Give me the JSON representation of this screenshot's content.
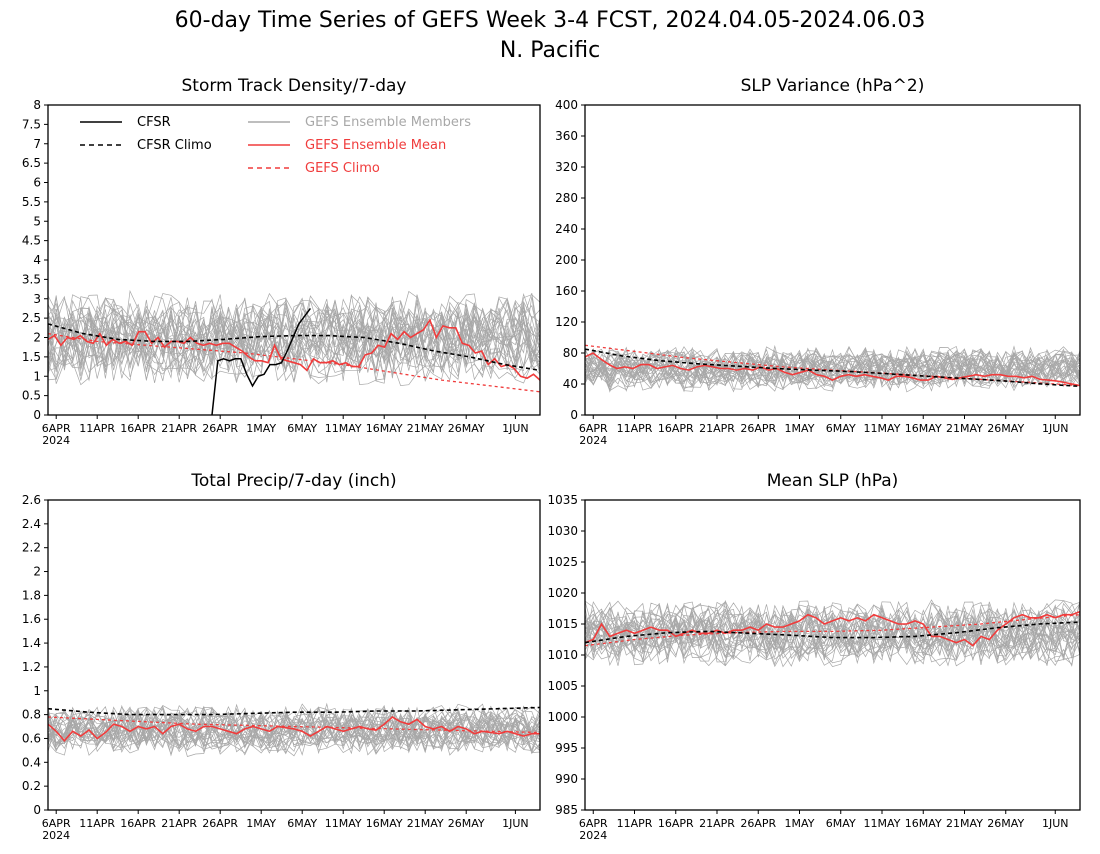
{
  "title": "60-day Time Series of GEFS Week 3-4 FCST, 2024.04.05-2024.06.03",
  "subtitle": "N. Pacific",
  "legend": {
    "cfsr": "CFSR",
    "cfsr_climo": "CFSR Climo",
    "members": "GEFS Ensemble Members",
    "mean": "GEFS Ensemble Mean",
    "gefs_climo": "GEFS Climo"
  },
  "colors": {
    "cfsr": "#000000",
    "cfsr_climo": "#000000",
    "members": "#a8a8a8",
    "mean": "#f03c3c",
    "gefs_climo": "#f03c3c"
  },
  "x_ticks": [
    "6APR",
    "11APR",
    "16APR",
    "21APR",
    "26APR",
    "1MAY",
    "6MAY",
    "11MAY",
    "16MAY",
    "21MAY",
    "26MAY",
    "1JUN"
  ],
  "x_year": "2024",
  "chart_data": [
    {
      "type": "line",
      "title": "Storm Track Density/7-day",
      "ylim": [
        0,
        8
      ],
      "yticks": [
        "0",
        "0.5",
        "1",
        "1.5",
        "2",
        "2.5",
        "3",
        "3.5",
        "4",
        "4.5",
        "5",
        "5.5",
        "6",
        "6.5",
        "7",
        "7.5",
        "8"
      ],
      "member_center": 2.0,
      "member_spread": 0.9,
      "member_count": 30,
      "series": [
        {
          "name": "GEFS Ensemble Mean",
          "role": "mean",
          "values": [
            1.95,
            2.05,
            1.8,
            2.0,
            1.95,
            2.05,
            1.9,
            1.85,
            2.1,
            1.8,
            1.95,
            1.85,
            1.9,
            1.8,
            2.15,
            2.15,
            1.85,
            2.0,
            1.75,
            1.9,
            1.9,
            1.85,
            2.0,
            1.85,
            1.8,
            1.85,
            1.8,
            1.85,
            1.85,
            1.75,
            1.65,
            1.5,
            1.4,
            1.4,
            1.35,
            1.8,
            1.45,
            1.4,
            1.35,
            1.3,
            1.15,
            1.45,
            1.35,
            1.35,
            1.4,
            1.3,
            1.35,
            1.25,
            1.25,
            1.55,
            1.6,
            1.8,
            1.75,
            2.1,
            1.95,
            2.15,
            2.0,
            2.1,
            2.2,
            2.45,
            2.0,
            2.3,
            2.25,
            2.25,
            1.85,
            1.8,
            1.6,
            1.65,
            1.3,
            1.45,
            1.25,
            1.3,
            1.2,
            1.0,
            0.95,
            1.05,
            0.9
          ]
        },
        {
          "name": "GEFS Climo",
          "role": "gefs_climo",
          "values": [
            2.1,
            1.9,
            1.8,
            1.7,
            1.6,
            1.45,
            1.3,
            1.1,
            0.9,
            0.75,
            0.6
          ]
        },
        {
          "name": "CFSR Climo",
          "role": "cfsr_climo",
          "values": [
            2.35,
            2.1,
            1.95,
            1.9,
            1.9,
            1.95,
            2.02,
            2.05,
            2.05,
            2.0,
            1.85,
            1.65,
            1.5,
            1.3,
            1.15
          ]
        },
        {
          "name": "CFSR",
          "role": "cfsr",
          "start_index": 20,
          "values": [
            0.0,
            1.4,
            1.45,
            1.4,
            1.45,
            1.45,
            1.05,
            0.75,
            1.0,
            1.05,
            1.3,
            1.3,
            1.35,
            1.65,
            2.0,
            2.35,
            2.55,
            2.75
          ]
        }
      ]
    },
    {
      "type": "line",
      "title": "SLP Variance (hPa^2)",
      "ylim": [
        0,
        400
      ],
      "yticks": [
        "0",
        "40",
        "80",
        "120",
        "160",
        "200",
        "240",
        "280",
        "320",
        "360",
        "400"
      ],
      "member_center": 60,
      "member_spread": 22,
      "member_count": 30,
      "series": [
        {
          "name": "GEFS Ensemble Mean",
          "role": "mean",
          "values": [
            75,
            80,
            72,
            65,
            60,
            62,
            60,
            65,
            65,
            60,
            62,
            64,
            60,
            58,
            62,
            64,
            62,
            60,
            60,
            58,
            60,
            58,
            62,
            58,
            60,
            55,
            52,
            55,
            58,
            52,
            50,
            45,
            50,
            52,
            50,
            52,
            50,
            48,
            45,
            50,
            50,
            48,
            45,
            45,
            50,
            48,
            46,
            48,
            50,
            52,
            50,
            52,
            52,
            50,
            50,
            48,
            50,
            46,
            45,
            44,
            42,
            40,
            38
          ]
        },
        {
          "name": "GEFS Climo",
          "role": "gefs_climo",
          "values": [
            90,
            82,
            74,
            68,
            62,
            58,
            54,
            50,
            46,
            42,
            38
          ]
        },
        {
          "name": "CFSR Climo",
          "role": "cfsr_climo",
          "values": [
            85,
            76,
            70,
            66,
            63,
            60,
            58,
            56,
            53,
            50,
            47,
            44,
            40,
            37
          ]
        }
      ]
    },
    {
      "type": "line",
      "title": "Total Precip/7-day (inch)",
      "ylim": [
        0,
        2.6
      ],
      "yticks": [
        "0",
        "0.2",
        "0.4",
        "0.6",
        "0.8",
        "1",
        "1.2",
        "1.4",
        "1.6",
        "1.8",
        "2",
        "2.2",
        "2.4",
        "2.6"
      ],
      "member_center": 0.67,
      "member_spread": 0.16,
      "member_count": 30,
      "series": [
        {
          "name": "GEFS Ensemble Mean",
          "role": "mean",
          "values": [
            0.72,
            0.66,
            0.58,
            0.66,
            0.62,
            0.67,
            0.6,
            0.65,
            0.72,
            0.7,
            0.66,
            0.7,
            0.68,
            0.7,
            0.64,
            0.7,
            0.72,
            0.68,
            0.66,
            0.7,
            0.7,
            0.68,
            0.66,
            0.64,
            0.68,
            0.7,
            0.68,
            0.66,
            0.7,
            0.69,
            0.68,
            0.66,
            0.62,
            0.66,
            0.7,
            0.68,
            0.66,
            0.68,
            0.7,
            0.68,
            0.67,
            0.72,
            0.78,
            0.74,
            0.72,
            0.76,
            0.7,
            0.68,
            0.7,
            0.66,
            0.7,
            0.68,
            0.64,
            0.66,
            0.65,
            0.64,
            0.66,
            0.64,
            0.62,
            0.64,
            0.64
          ]
        },
        {
          "name": "GEFS Climo",
          "role": "gefs_climo",
          "values": [
            0.78,
            0.76,
            0.74,
            0.72,
            0.71,
            0.7,
            0.69,
            0.68,
            0.67,
            0.66,
            0.65
          ]
        },
        {
          "name": "CFSR Climo",
          "role": "cfsr_climo",
          "values": [
            0.85,
            0.82,
            0.8,
            0.8,
            0.8,
            0.81,
            0.82,
            0.82,
            0.83,
            0.83,
            0.84,
            0.85,
            0.86
          ]
        }
      ]
    },
    {
      "type": "line",
      "title": "Mean SLP (hPa)",
      "ylim": [
        985,
        1035
      ],
      "yticks": [
        "985",
        "990",
        "995",
        "1000",
        "1005",
        "1010",
        "1015",
        "1020",
        "1025",
        "1030",
        "1035"
      ],
      "member_center": 1013.5,
      "member_spread": 4.0,
      "member_count": 30,
      "series": [
        {
          "name": "GEFS Ensemble Mean",
          "role": "mean",
          "values": [
            1012,
            1012.5,
            1015,
            1013,
            1013.5,
            1014,
            1013.5,
            1014,
            1014.5,
            1014,
            1014,
            1013,
            1013.5,
            1014,
            1013.5,
            1013.5,
            1014,
            1013.5,
            1014,
            1014,
            1014.5,
            1014,
            1015,
            1014.5,
            1014.5,
            1015,
            1015.5,
            1016.5,
            1016,
            1015,
            1015.5,
            1016,
            1015.5,
            1016,
            1015.5,
            1016.5,
            1016,
            1015.5,
            1015,
            1015,
            1015.5,
            1015,
            1013,
            1013,
            1012.5,
            1012,
            1012.5,
            1011.5,
            1013,
            1012.5,
            1014,
            1015,
            1016,
            1016.5,
            1016,
            1016,
            1016.5,
            1016,
            1016.5,
            1016.5,
            1017
          ]
        },
        {
          "name": "GEFS Climo",
          "role": "gefs_climo",
          "values": [
            1011.5,
            1012.5,
            1013.2,
            1013.6,
            1013.8,
            1013.8,
            1014,
            1014.5,
            1015,
            1015.8,
            1016.5
          ]
        },
        {
          "name": "CFSR Climo",
          "role": "cfsr_climo",
          "values": [
            1012,
            1013,
            1013.6,
            1013.8,
            1013.5,
            1013.2,
            1012.8,
            1012.8,
            1013,
            1013.6,
            1014.4,
            1015,
            1015.3
          ]
        }
      ]
    }
  ]
}
